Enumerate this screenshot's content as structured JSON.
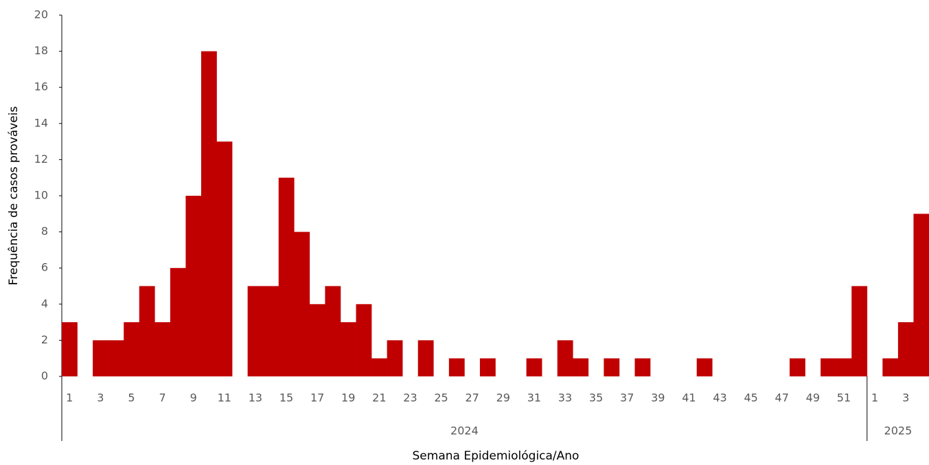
{
  "chart_data": {
    "type": "bar",
    "xlabel": "Semana Epidemiológica/Ano",
    "ylabel": "Frequência de casos prováveis",
    "color": "#c00000",
    "ylim": [
      0,
      20
    ],
    "yticks": [
      0,
      2,
      4,
      6,
      8,
      10,
      12,
      14,
      16,
      18,
      20
    ],
    "groups": [
      {
        "label": "2024",
        "categories": [
          "1",
          null,
          "3",
          null,
          "5",
          null,
          "7",
          null,
          "9",
          null,
          "11",
          null,
          "13",
          null,
          "15",
          null,
          "17",
          null,
          "19",
          null,
          "21",
          null,
          "23",
          null,
          "25",
          null,
          "27",
          null,
          "29",
          null,
          "31",
          null,
          "33",
          null,
          "35",
          null,
          "37",
          null,
          "39",
          null,
          "41",
          null,
          "43",
          null,
          "45",
          null,
          "47",
          null,
          "49",
          null,
          "51",
          null
        ],
        "values": [
          3,
          0,
          2,
          2,
          3,
          5,
          3,
          6,
          10,
          18,
          13,
          0,
          5,
          5,
          11,
          8,
          4,
          5,
          3,
          4,
          1,
          2,
          0,
          2,
          0,
          1,
          0,
          1,
          0,
          0,
          1,
          0,
          2,
          1,
          0,
          1,
          0,
          1,
          0,
          0,
          0,
          1,
          0,
          0,
          0,
          0,
          0,
          1,
          0,
          1,
          1,
          5
        ]
      },
      {
        "label": "2025",
        "categories": [
          "1",
          null,
          "3",
          null
        ],
        "values": [
          0,
          1,
          3,
          9
        ]
      }
    ]
  }
}
